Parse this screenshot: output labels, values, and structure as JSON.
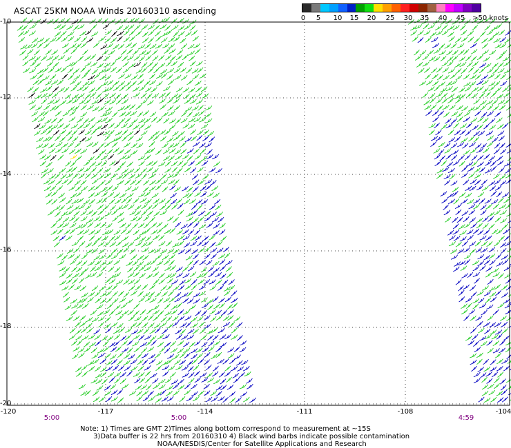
{
  "title": "ASCAT 25KM NOAA Winds 20160310 ascending",
  "colorbar": {
    "colors": [
      "#2a2a2a",
      "#7a7a7a",
      "#00c8ff",
      "#00a0ff",
      "#1060ff",
      "#0020c8",
      "#00a000",
      "#10e010",
      "#ffe000",
      "#ffa000",
      "#ff6000",
      "#ff2020",
      "#d00000",
      "#8b2500",
      "#a06040",
      "#ff80c0",
      "#ff00ff",
      "#c000ff",
      "#8000c0",
      "#5000a0"
    ],
    "labels": [
      "0",
      "5",
      "10",
      "15",
      "20",
      "25",
      "30",
      "35",
      "40",
      "45",
      ">50 knots"
    ]
  },
  "map": {
    "lon_range": [
      -120,
      -104
    ],
    "lat_range": [
      -10,
      -20
    ],
    "lat_ticks": [
      "-10",
      "-12",
      "-14",
      "-16",
      "-18",
      "-20"
    ],
    "lon_ticks": [
      "-120",
      "-117",
      "-114",
      "-111",
      "-108",
      "-104"
    ],
    "swath_times": [
      "5:00",
      "5:00",
      "4:59"
    ],
    "barb_colors": {
      "light": "#22cc22",
      "moderate": "#0000c0",
      "calm": "#ffe000",
      "contaminated": "#000000"
    }
  },
  "notes": {
    "line1": "Note: 1) Times are GMT 2)Times along bottom correspond to measurement at ~15S",
    "line2": "      3)Data buffer is 22 hrs from 20160310 4) Black wind barbs indicate possible contamination",
    "line3": "                                     NOAA/NESDIS/Center for Satellite Applications and Research"
  }
}
